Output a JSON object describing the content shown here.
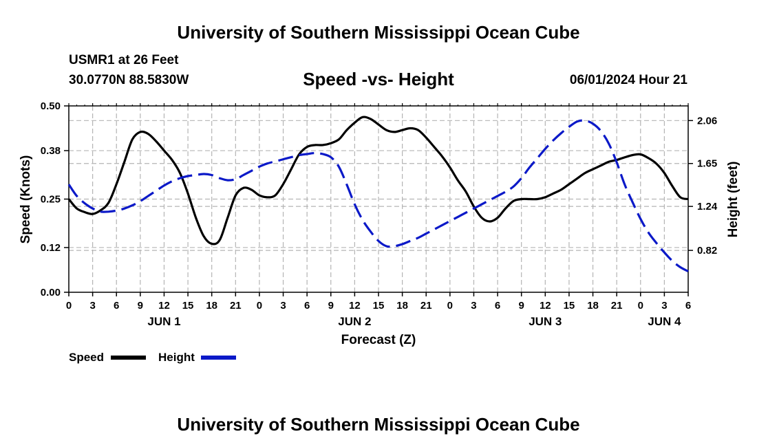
{
  "header": {
    "title": "University of Southern Mississippi Ocean Cube",
    "station": "USMR1 at 26 Feet",
    "coords": "30.0770N  88.5830W",
    "datetime": "06/01/2024 Hour 21"
  },
  "footer": {
    "title": "University of Southern Mississippi Ocean Cube"
  },
  "chart_data": {
    "type": "line",
    "title": "Speed -vs- Height",
    "xlabel": "Forecast (Z)",
    "ylabel": "Speed (Knots)",
    "y2label": "Height (feet)",
    "x_range": [
      0,
      78
    ],
    "ylim": [
      0,
      0.5
    ],
    "y2lim": [
      0.42,
      2.2
    ],
    "grid": true,
    "y_ticks": [
      0.0,
      0.12,
      0.25,
      0.38,
      0.5
    ],
    "y_tick_labels": [
      "0.00",
      "0.12",
      "0.25",
      "0.38",
      "0.50"
    ],
    "y2_ticks": [
      0.82,
      1.24,
      1.65,
      2.06
    ],
    "y2_tick_labels": [
      "0.82",
      "1.24",
      "1.65",
      "2.06"
    ],
    "x_ticks": [
      0,
      3,
      6,
      9,
      12,
      15,
      18,
      21,
      24,
      27,
      30,
      33,
      36,
      39,
      42,
      45,
      48,
      51,
      54,
      57,
      60,
      63,
      66,
      69,
      72,
      75,
      78
    ],
    "x_tick_labels": [
      "0",
      "3",
      "6",
      "9",
      "12",
      "15",
      "18",
      "21",
      "0",
      "3",
      "6",
      "9",
      "12",
      "15",
      "18",
      "21",
      "0",
      "3",
      "6",
      "9",
      "12",
      "15",
      "18",
      "21",
      "0",
      "3",
      "6"
    ],
    "date_labels": [
      {
        "x": 12,
        "label": "JUN 1"
      },
      {
        "x": 36,
        "label": "JUN 2"
      },
      {
        "x": 60,
        "label": "JUN 3"
      },
      {
        "x": 75,
        "label": "JUN 4"
      }
    ],
    "legend": [
      {
        "name": "Speed",
        "color": "#000000",
        "style": "solid"
      },
      {
        "name": "Height",
        "color": "#0b19c8",
        "style": "dashed"
      }
    ],
    "series": [
      {
        "name": "Speed",
        "axis": "left",
        "color": "#000000",
        "x": [
          0,
          1,
          2,
          3,
          4,
          5,
          6,
          7,
          8,
          9,
          10,
          11,
          12,
          13,
          14,
          15,
          16,
          17,
          18,
          19,
          20,
          21,
          22,
          23,
          24,
          25,
          26,
          27,
          28,
          29,
          30,
          31,
          32,
          33,
          34,
          35,
          36,
          37,
          38,
          39,
          40,
          41,
          42,
          43,
          44,
          45,
          46,
          47,
          48,
          49,
          50,
          51,
          52,
          53,
          54,
          55,
          56,
          57,
          58,
          59,
          60,
          61,
          62,
          63,
          64,
          65,
          66,
          67,
          68,
          69,
          70,
          71,
          72,
          73,
          74,
          75,
          76,
          77,
          78
        ],
        "values": [
          0.25,
          0.225,
          0.215,
          0.21,
          0.22,
          0.24,
          0.29,
          0.35,
          0.41,
          0.43,
          0.425,
          0.405,
          0.38,
          0.355,
          0.32,
          0.265,
          0.2,
          0.15,
          0.13,
          0.14,
          0.2,
          0.26,
          0.28,
          0.275,
          0.26,
          0.255,
          0.26,
          0.29,
          0.33,
          0.37,
          0.39,
          0.395,
          0.395,
          0.4,
          0.41,
          0.435,
          0.455,
          0.47,
          0.465,
          0.45,
          0.435,
          0.43,
          0.435,
          0.44,
          0.435,
          0.415,
          0.39,
          0.365,
          0.335,
          0.3,
          0.27,
          0.23,
          0.2,
          0.19,
          0.2,
          0.225,
          0.245,
          0.25,
          0.25,
          0.25,
          0.255,
          0.265,
          0.275,
          0.29,
          0.305,
          0.32,
          0.33,
          0.34,
          0.35,
          0.355,
          0.362,
          0.368,
          0.37,
          0.36,
          0.345,
          0.32,
          0.285,
          0.255,
          0.25
        ]
      },
      {
        "name": "Height",
        "axis": "right",
        "color": "#0b19c8",
        "x": [
          0,
          1,
          2,
          3,
          4,
          5,
          6,
          7,
          8,
          9,
          10,
          11,
          12,
          13,
          14,
          15,
          16,
          17,
          18,
          19,
          20,
          21,
          22,
          23,
          24,
          25,
          26,
          27,
          28,
          29,
          30,
          31,
          32,
          33,
          34,
          35,
          36,
          37,
          38,
          39,
          40,
          41,
          42,
          43,
          44,
          45,
          46,
          47,
          48,
          49,
          50,
          51,
          52,
          53,
          54,
          55,
          56,
          57,
          58,
          59,
          60,
          61,
          62,
          63,
          64,
          65,
          66,
          67,
          68,
          69,
          70,
          71,
          72,
          73,
          74,
          75,
          76,
          77,
          78
        ],
        "values": [
          1.45,
          1.34,
          1.27,
          1.22,
          1.19,
          1.19,
          1.2,
          1.22,
          1.25,
          1.29,
          1.34,
          1.39,
          1.44,
          1.48,
          1.51,
          1.53,
          1.54,
          1.55,
          1.54,
          1.51,
          1.49,
          1.5,
          1.54,
          1.58,
          1.62,
          1.65,
          1.67,
          1.69,
          1.71,
          1.73,
          1.74,
          1.75,
          1.74,
          1.71,
          1.62,
          1.45,
          1.26,
          1.11,
          1.0,
          0.91,
          0.86,
          0.86,
          0.88,
          0.91,
          0.94,
          0.98,
          1.02,
          1.06,
          1.1,
          1.14,
          1.18,
          1.22,
          1.26,
          1.3,
          1.34,
          1.38,
          1.43,
          1.51,
          1.61,
          1.7,
          1.79,
          1.87,
          1.94,
          2.0,
          2.05,
          2.06,
          2.03,
          1.96,
          1.84,
          1.66,
          1.45,
          1.28,
          1.12,
          0.99,
          0.89,
          0.8,
          0.72,
          0.66,
          0.62
        ]
      }
    ]
  }
}
